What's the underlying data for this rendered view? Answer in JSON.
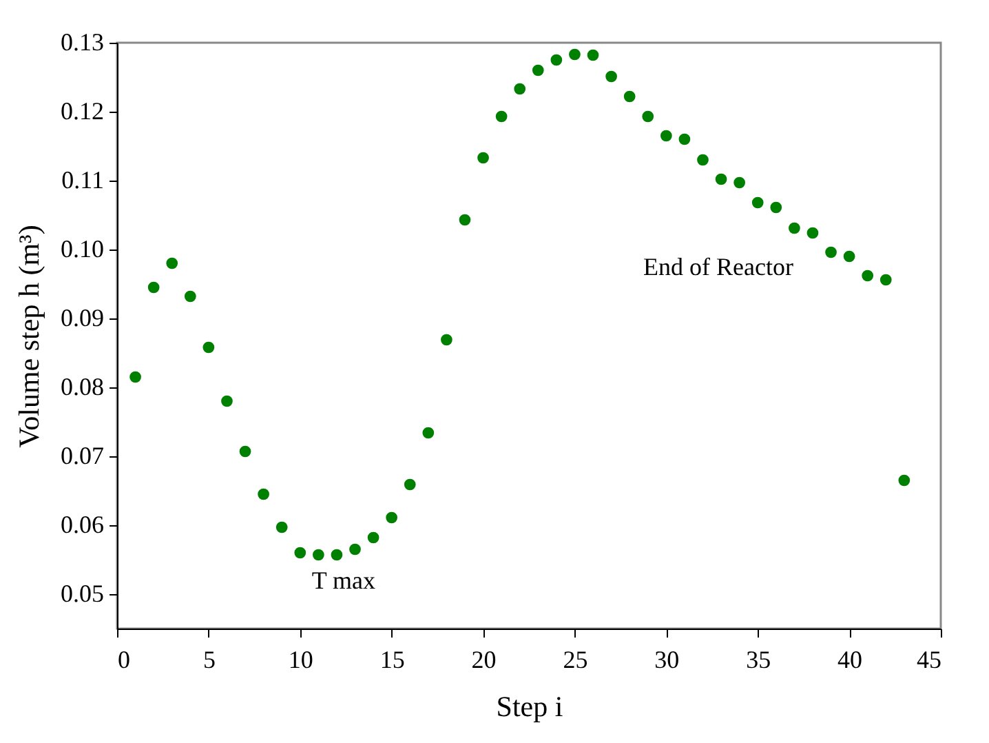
{
  "chart_data": {
    "type": "scatter",
    "xlabel": "Step i",
    "ylabel": "Volume step h (m³)",
    "x": [
      1,
      2,
      3,
      4,
      5,
      6,
      7,
      8,
      9,
      10,
      11,
      12,
      13,
      14,
      15,
      16,
      17,
      18,
      19,
      20,
      21,
      22,
      23,
      24,
      25,
      26,
      27,
      28,
      29,
      30,
      31,
      32,
      33,
      34,
      35,
      36,
      37,
      38,
      39,
      40,
      41,
      42,
      43
    ],
    "series": [
      {
        "color": "#008000",
        "values": [
          0.0815,
          0.0945,
          0.098,
          0.0932,
          0.0858,
          0.078,
          0.0707,
          0.0645,
          0.0597,
          0.056,
          0.0557,
          0.0557,
          0.0565,
          0.0582,
          0.0611,
          0.0659,
          0.0734,
          0.0869,
          0.1043,
          0.1133,
          0.1193,
          0.1233,
          0.126,
          0.1275,
          0.1283,
          0.1282,
          0.1251,
          0.1222,
          0.1193,
          0.1165,
          0.116,
          0.113,
          0.1102,
          0.1097,
          0.1068,
          0.1061,
          0.1031,
          0.1024,
          0.0996,
          0.099,
          0.0962,
          0.0956,
          0.0665
        ]
      }
    ],
    "xlim": [
      0,
      45
    ],
    "xticks": [
      0,
      5,
      10,
      15,
      20,
      25,
      30,
      35,
      40,
      45
    ],
    "ylim": [
      0.045,
      0.13
    ],
    "yticks": [
      0.05,
      0.06,
      0.07,
      0.08,
      0.09,
      {
        "value": 0.1,
        "label": "0.10"
      },
      0.11,
      0.12,
      0.13
    ],
    "annotations": [
      "T max",
      "End of Reactor"
    ],
    "marker": "circle",
    "grid": false
  }
}
